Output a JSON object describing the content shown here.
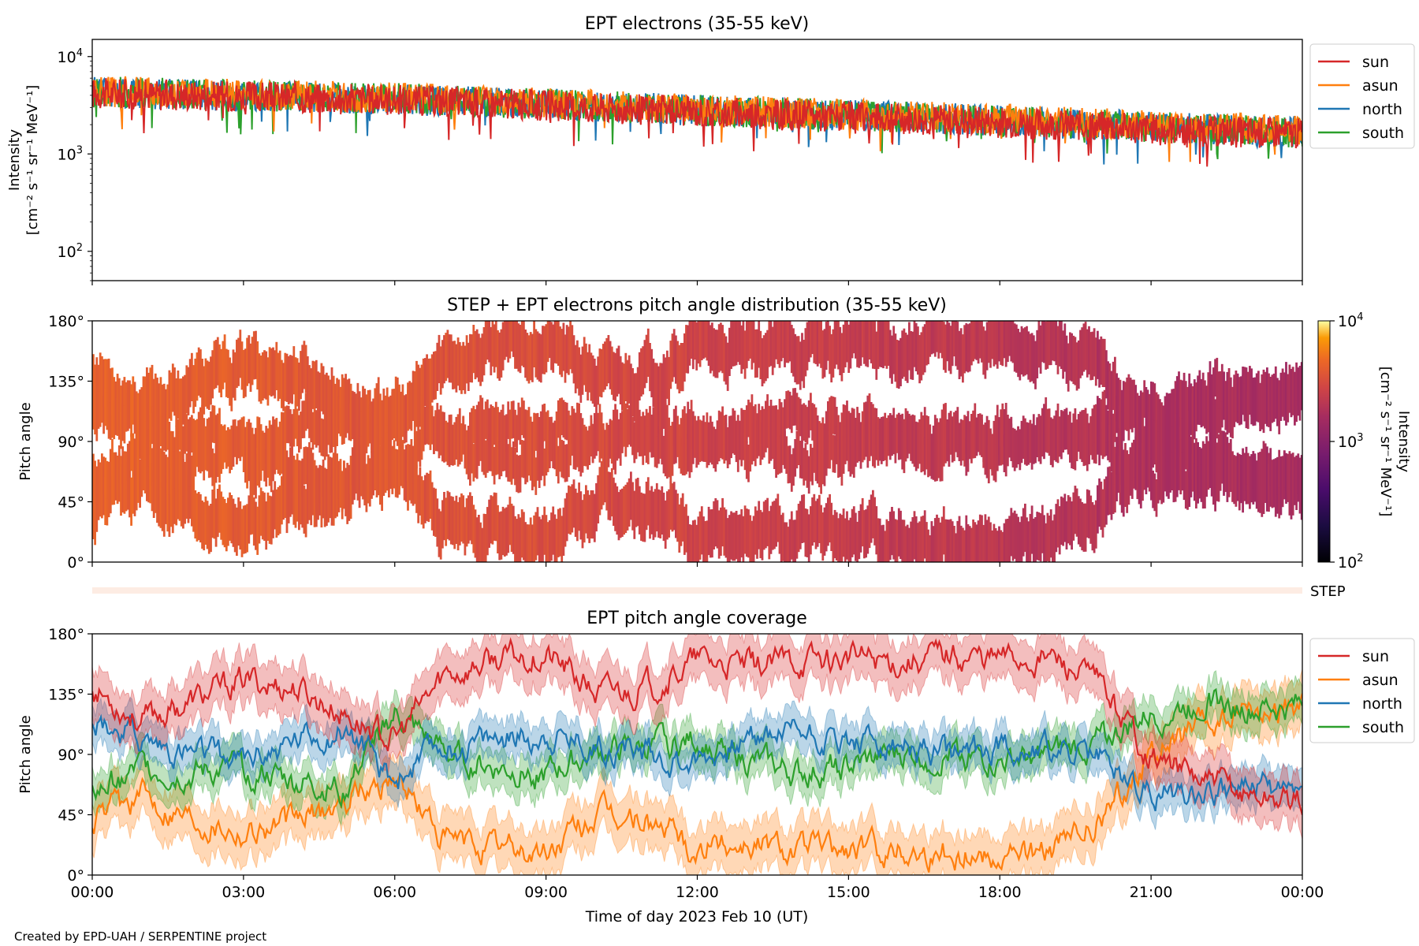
{
  "credit": "Created by EPD-UAH / SERPENTINE project",
  "xlabel": "Time of day 2023 Feb 10 (UT)",
  "x_ticks": [
    "00:00",
    "03:00",
    "06:00",
    "09:00",
    "12:00",
    "15:00",
    "18:00",
    "21:00",
    "00:00"
  ],
  "chart_data": [
    {
      "type": "line",
      "title": "EPT electrons (35-55 keV)",
      "ylabel": [
        "Intensity",
        "[cm⁻² s⁻¹ sr⁻¹ MeV⁻¹]"
      ],
      "yscale": "log",
      "ylim": [
        50,
        15000
      ],
      "y_ticks": [
        {
          "value": 100,
          "base": "10",
          "exp": "2"
        },
        {
          "value": 1000,
          "base": "10",
          "exp": "3"
        },
        {
          "value": 10000,
          "base": "10",
          "exp": "4"
        }
      ],
      "x_unit": "hours",
      "xlim": [
        0,
        24
      ],
      "legend": "outside-right",
      "series": [
        {
          "name": "sun",
          "color": "#d62728",
          "x": [
            0,
            1,
            2,
            3,
            4,
            5,
            6,
            7,
            8,
            9,
            10,
            11,
            12,
            13,
            14,
            15,
            16,
            17,
            18,
            19,
            20,
            21,
            22,
            23,
            24
          ],
          "values": [
            4200,
            4100,
            4000,
            3900,
            3800,
            3700,
            3600,
            3450,
            3300,
            3150,
            3000,
            2850,
            2700,
            2600,
            2500,
            2400,
            2300,
            2200,
            2100,
            2000,
            1900,
            1800,
            1700,
            1650,
            1600
          ]
        },
        {
          "name": "asun",
          "color": "#ff7f0e",
          "x": [
            0,
            1,
            2,
            3,
            4,
            5,
            6,
            7,
            8,
            9,
            10,
            11,
            12,
            13,
            14,
            15,
            16,
            17,
            18,
            19,
            20,
            21,
            22,
            23,
            24
          ],
          "values": [
            4400,
            4300,
            4150,
            4050,
            3950,
            3850,
            3750,
            3600,
            3450,
            3300,
            3150,
            3000,
            2850,
            2750,
            2650,
            2550,
            2450,
            2350,
            2250,
            2150,
            2050,
            1950,
            1850,
            1800,
            1700
          ]
        },
        {
          "name": "north",
          "color": "#1f77b4",
          "x": [
            0,
            1,
            2,
            3,
            4,
            5,
            6,
            7,
            8,
            9,
            10,
            11,
            12,
            13,
            14,
            15,
            16,
            17,
            18,
            19,
            20,
            21,
            22,
            23,
            24
          ],
          "values": [
            4300,
            4200,
            4050,
            3950,
            3850,
            3750,
            3650,
            3500,
            3400,
            3250,
            3100,
            2950,
            2800,
            2700,
            2600,
            2500,
            2400,
            2300,
            2200,
            2100,
            2000,
            1900,
            1800,
            1750,
            1700
          ]
        },
        {
          "name": "south",
          "color": "#2ca02c",
          "x": [
            0,
            1,
            2,
            3,
            4,
            5,
            6,
            7,
            8,
            9,
            10,
            11,
            12,
            13,
            14,
            15,
            16,
            17,
            18,
            19,
            20,
            21,
            22,
            23,
            24
          ],
          "values": [
            4350,
            4250,
            4100,
            4000,
            3900,
            3800,
            3700,
            3550,
            3400,
            3250,
            3100,
            2950,
            2800,
            2700,
            2600,
            2500,
            2400,
            2300,
            2200,
            2100,
            2000,
            1900,
            1800,
            1750,
            1650
          ]
        }
      ]
    },
    {
      "type": "heatmap",
      "title": "STEP + EPT electrons pitch angle distribution (35-55 keV)",
      "ylabel": "Pitch angle",
      "y_ticks": [
        "0°",
        "45°",
        "90°",
        "135°",
        "180°"
      ],
      "ylim": [
        0,
        180
      ],
      "xlim": [
        0,
        24
      ],
      "colorbar": {
        "scale": "log",
        "range": [
          100,
          10000
        ],
        "ticks": [
          {
            "value": 100,
            "base": "10",
            "exp": "2"
          },
          {
            "value": 1000,
            "base": "10",
            "exp": "3"
          },
          {
            "value": 10000,
            "base": "10",
            "exp": "4"
          }
        ],
        "label": [
          "Intensity",
          "[cm⁻² s⁻¹ sr⁻¹ MeV⁻¹]"
        ],
        "colormap": "inferno"
      },
      "intensity": {
        "x": [
          0,
          2,
          4,
          6,
          8,
          10,
          12,
          14,
          16,
          18,
          20,
          22,
          24
        ],
        "values": [
          4300,
          4000,
          3800,
          3600,
          3300,
          3000,
          2700,
          2500,
          2300,
          2100,
          1900,
          1700,
          1600
        ]
      },
      "step_label": "STEP"
    },
    {
      "type": "area",
      "title": "EPT pitch angle coverage",
      "ylabel": "Pitch angle",
      "y_ticks": [
        "0°",
        "45°",
        "90°",
        "135°",
        "180°"
      ],
      "ylim": [
        0,
        180
      ],
      "xlim": [
        0,
        24
      ],
      "legend": "outside-right",
      "series": [
        {
          "name": "sun",
          "color": "#d62728",
          "x": [
            0,
            1,
            2,
            3,
            4,
            5,
            6,
            7,
            8,
            9,
            10,
            11,
            12,
            13,
            14,
            15,
            16,
            17,
            18,
            19,
            20,
            21,
            22,
            23,
            24
          ],
          "values": [
            140,
            115,
            130,
            145,
            140,
            120,
            100,
            150,
            160,
            165,
            135,
            140,
            160,
            155,
            160,
            162,
            160,
            165,
            162,
            163,
            140,
            90,
            70,
            60,
            55
          ],
          "spread": 18
        },
        {
          "name": "asun",
          "color": "#ff7f0e",
          "x": [
            0,
            1,
            2,
            3,
            4,
            5,
            6,
            7,
            8,
            9,
            10,
            11,
            12,
            13,
            14,
            15,
            16,
            17,
            18,
            19,
            20,
            21,
            22,
            23,
            24
          ],
          "values": [
            40,
            60,
            45,
            35,
            40,
            55,
            75,
            25,
            20,
            15,
            45,
            40,
            20,
            25,
            20,
            18,
            20,
            15,
            18,
            17,
            40,
            90,
            110,
            120,
            125
          ],
          "spread": 18
        },
        {
          "name": "north",
          "color": "#1f77b4",
          "x": [
            0,
            1,
            2,
            3,
            4,
            5,
            6,
            7,
            8,
            9,
            10,
            11,
            12,
            13,
            14,
            15,
            16,
            17,
            18,
            19,
            20,
            21,
            22,
            23,
            24
          ],
          "values": [
            120,
            100,
            90,
            85,
            100,
            110,
            70,
            95,
            100,
            105,
            95,
            90,
            85,
            100,
            110,
            100,
            95,
            90,
            95,
            95,
            85,
            60,
            65,
            65,
            60
          ],
          "spread": 14
        },
        {
          "name": "south",
          "color": "#2ca02c",
          "x": [
            0,
            1,
            2,
            3,
            4,
            5,
            6,
            7,
            8,
            9,
            10,
            11,
            12,
            13,
            14,
            15,
            16,
            17,
            18,
            19,
            20,
            21,
            22,
            23,
            24
          ],
          "values": [
            60,
            80,
            75,
            80,
            70,
            65,
            120,
            90,
            80,
            75,
            90,
            95,
            100,
            85,
            75,
            80,
            90,
            90,
            85,
            90,
            100,
            120,
            130,
            125,
            125
          ],
          "spread": 14
        }
      ]
    }
  ]
}
